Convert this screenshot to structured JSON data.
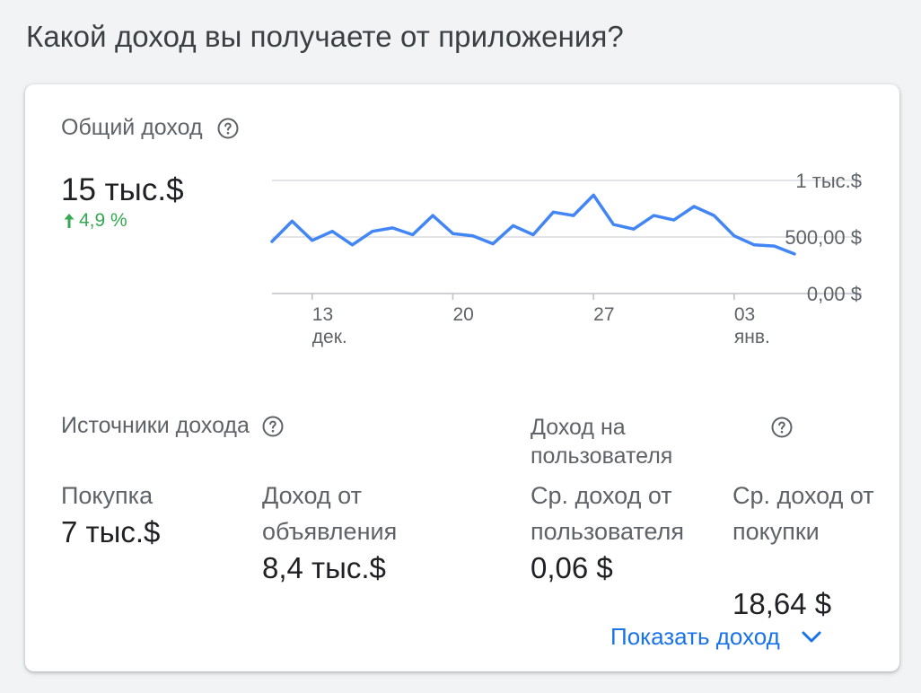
{
  "page": {
    "title": "Какой доход вы получаете от приложения?"
  },
  "total": {
    "label": "Общий доход",
    "value": "15 тыс.$",
    "change": "4,9 %"
  },
  "chart_data": {
    "type": "line",
    "series": [
      {
        "values": [
          460,
          640,
          470,
          550,
          430,
          550,
          580,
          520,
          690,
          530,
          510,
          440,
          600,
          520,
          720,
          690,
          870,
          610,
          570,
          690,
          650,
          770,
          690,
          510,
          430,
          420,
          350
        ]
      }
    ],
    "x_ticks": [
      {
        "index": 2,
        "day": "13",
        "month": "дек."
      },
      {
        "index": 9,
        "day": "20",
        "month": ""
      },
      {
        "index": 16,
        "day": "27",
        "month": ""
      },
      {
        "index": 23,
        "day": "03",
        "month": "янв."
      }
    ],
    "y_ticks": [
      {
        "value": 1000,
        "label": "1 тыс.$"
      },
      {
        "value": 500,
        "label": "500,00 $"
      },
      {
        "value": 0,
        "label": "0,00 $"
      }
    ],
    "ylim": [
      0,
      1000
    ],
    "line_color": "#4285f4",
    "grid": true
  },
  "sources": {
    "title": "Источники дохода",
    "purchase": {
      "label": "Покупка",
      "value": "7 тыс.$"
    },
    "ads": {
      "label": "Доход от объявления",
      "value": "8,4 тыс.$"
    }
  },
  "per_user": {
    "title": "Доход на пользователя",
    "avg_user": {
      "label": "Ср. доход от пользователя",
      "value": "0,06 $"
    },
    "avg_purchase": {
      "label": "Ср. доход от покупки",
      "value": "18,64 $"
    }
  },
  "actions": {
    "show_more": "Показать доход"
  },
  "colors": {
    "accent": "#1a73e8",
    "positive": "#34a853"
  }
}
